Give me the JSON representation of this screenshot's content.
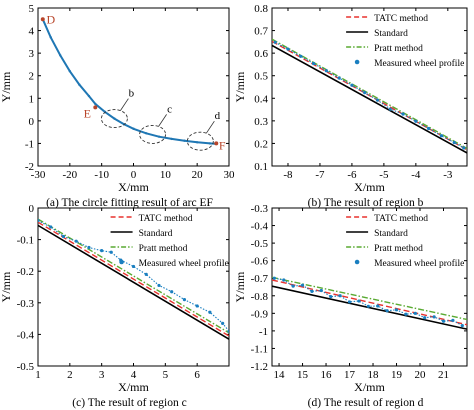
{
  "chart_data": [
    {
      "type": "line",
      "caption": "(a) The circle fitting result of arc EF",
      "xlabel": "X/mm",
      "ylabel": "Y/mm",
      "xlim": [
        -30,
        30
      ],
      "ylim": [
        -2,
        5
      ],
      "xticks": [
        -30,
        -20,
        -10,
        0,
        10,
        20,
        30
      ],
      "yticks": [
        -2,
        -1,
        0,
        1,
        2,
        3,
        4,
        5
      ],
      "grid": false,
      "series": [
        {
          "name": "Measured wheel profile",
          "style": "curve",
          "color": "#1f77b4",
          "x": [
            -28.5,
            -26,
            -23,
            -20,
            -17,
            -14,
            -12,
            -9,
            -6,
            -3,
            0,
            4,
            8,
            12,
            16,
            20,
            24,
            26
          ],
          "y": [
            4.5,
            3.7,
            2.9,
            2.2,
            1.6,
            1.1,
            0.75,
            0.4,
            0.1,
            -0.15,
            -0.35,
            -0.55,
            -0.7,
            -0.8,
            -0.88,
            -0.95,
            -1.0,
            -1.02
          ]
        }
      ],
      "point_labels": [
        {
          "text": "D",
          "x": -28.5,
          "y": 4.5
        },
        {
          "text": "E",
          "x": -12,
          "y": 0.6
        },
        {
          "text": "F",
          "x": 26,
          "y": -1.0
        }
      ],
      "region_labels": [
        {
          "text": "b",
          "x": -6,
          "y": 0.1
        },
        {
          "text": "c",
          "x": 6,
          "y": -0.6
        },
        {
          "text": "d",
          "x": 21,
          "y": -0.9
        }
      ]
    },
    {
      "type": "line",
      "caption": "(b) The result of region b",
      "xlabel": "X/mm",
      "ylabel": "Y/mm",
      "xlim": [
        -8.5,
        -2.4
      ],
      "ylim": [
        0.1,
        0.8
      ],
      "xticks": [
        -8,
        -7,
        -6,
        -5,
        -4,
        -3
      ],
      "yticks": [
        0.1,
        0.2,
        0.3,
        0.4,
        0.5,
        0.6,
        0.7,
        0.8
      ],
      "legend": "top-right",
      "series": [
        {
          "name": "TATC method",
          "style": "dashed",
          "color": "#e8322e",
          "x": [
            -8.5,
            -2.4
          ],
          "y": [
            0.652,
            0.172
          ]
        },
        {
          "name": "Standard",
          "style": "solid",
          "color": "#000000",
          "x": [
            -8.5,
            -2.4
          ],
          "y": [
            0.634,
            0.158
          ]
        },
        {
          "name": "Pratt method",
          "style": "dashdot",
          "color": "#5aaa32",
          "x": [
            -8.5,
            -2.4
          ],
          "y": [
            0.662,
            0.178
          ]
        },
        {
          "name": "Measured wheel profile",
          "style": "points",
          "color": "#1a7fc0",
          "x": [
            -8.4,
            -8.0,
            -7.6,
            -7.2,
            -6.8,
            -6.4,
            -6.0,
            -5.6,
            -5.2,
            -4.8,
            -4.4,
            -4.0,
            -3.6,
            -3.2,
            -2.8,
            -2.5
          ],
          "y": [
            0.648,
            0.618,
            0.586,
            0.554,
            0.522,
            0.49,
            0.458,
            0.425,
            0.392,
            0.352,
            0.33,
            0.298,
            0.266,
            0.234,
            0.204,
            0.18
          ]
        }
      ]
    },
    {
      "type": "line",
      "caption": "(c) The result of region c",
      "xlabel": "X/mm",
      "ylabel": "Y/mm",
      "xlim": [
        1,
        7
      ],
      "ylim": [
        -0.5,
        0
      ],
      "xticks": [
        1,
        2,
        3,
        4,
        5,
        6
      ],
      "yticks": [
        -0.5,
        -0.4,
        -0.3,
        -0.2,
        -0.1,
        0
      ],
      "legend": "top-right",
      "series": [
        {
          "name": "TATC method",
          "style": "dashed",
          "color": "#e8322e",
          "x": [
            1,
            7
          ],
          "y": [
            -0.045,
            -0.405
          ]
        },
        {
          "name": "Standard",
          "style": "solid",
          "color": "#000000",
          "x": [
            1,
            7
          ],
          "y": [
            -0.055,
            -0.415
          ]
        },
        {
          "name": "Pratt method",
          "style": "dashdot",
          "color": "#5aaa32",
          "x": [
            1,
            7
          ],
          "y": [
            -0.035,
            -0.395
          ]
        },
        {
          "name": "Measured wheel profile",
          "style": "points",
          "color": "#1a7fc0",
          "x": [
            1.0,
            1.4,
            1.8,
            2.2,
            2.6,
            3.0,
            3.3,
            3.6,
            4.0,
            4.4,
            4.8,
            5.2,
            5.6,
            6.0,
            6.4,
            6.8,
            7.0
          ],
          "y": [
            -0.04,
            -0.06,
            -0.09,
            -0.105,
            -0.125,
            -0.135,
            -0.14,
            -0.165,
            -0.185,
            -0.21,
            -0.245,
            -0.265,
            -0.29,
            -0.31,
            -0.33,
            -0.365,
            -0.39
          ]
        }
      ]
    },
    {
      "type": "line",
      "caption": "(d) The result of region d",
      "xlabel": "X/mm",
      "ylabel": "Y/mm",
      "xlim": [
        13.7,
        22
      ],
      "ylim": [
        -1.2,
        -0.3
      ],
      "xticks": [
        14,
        15,
        16,
        17,
        18,
        19,
        20,
        21
      ],
      "yticks": [
        -1.2,
        -1.1,
        -1,
        -0.9,
        -0.8,
        -0.7,
        -0.6,
        -0.5,
        -0.4,
        -0.3
      ],
      "legend": "top-right",
      "series": [
        {
          "name": "TATC method",
          "style": "dashed",
          "color": "#e8322e",
          "x": [
            13.7,
            22
          ],
          "y": [
            -0.71,
            -0.965
          ]
        },
        {
          "name": "Standard",
          "style": "solid",
          "color": "#000000",
          "x": [
            13.7,
            22
          ],
          "y": [
            -0.745,
            -0.99
          ]
        },
        {
          "name": "Pratt method",
          "style": "dashdot",
          "color": "#5aaa32",
          "x": [
            13.7,
            22
          ],
          "y": [
            -0.695,
            -0.935
          ]
        },
        {
          "name": "Measured wheel profile",
          "style": "points",
          "color": "#1a7fc0",
          "x": [
            13.8,
            14.2,
            14.6,
            15.0,
            15.4,
            15.8,
            16.2,
            16.6,
            17.0,
            17.4,
            17.8,
            18.2,
            18.6,
            19.0,
            19.4,
            19.8,
            20.2,
            20.6,
            21.0,
            21.4,
            21.8
          ],
          "y": [
            -0.7,
            -0.71,
            -0.745,
            -0.74,
            -0.775,
            -0.77,
            -0.805,
            -0.8,
            -0.835,
            -0.83,
            -0.86,
            -0.858,
            -0.885,
            -0.88,
            -0.905,
            -0.9,
            -0.925,
            -0.92,
            -0.945,
            -0.94,
            -0.97
          ]
        }
      ]
    }
  ]
}
